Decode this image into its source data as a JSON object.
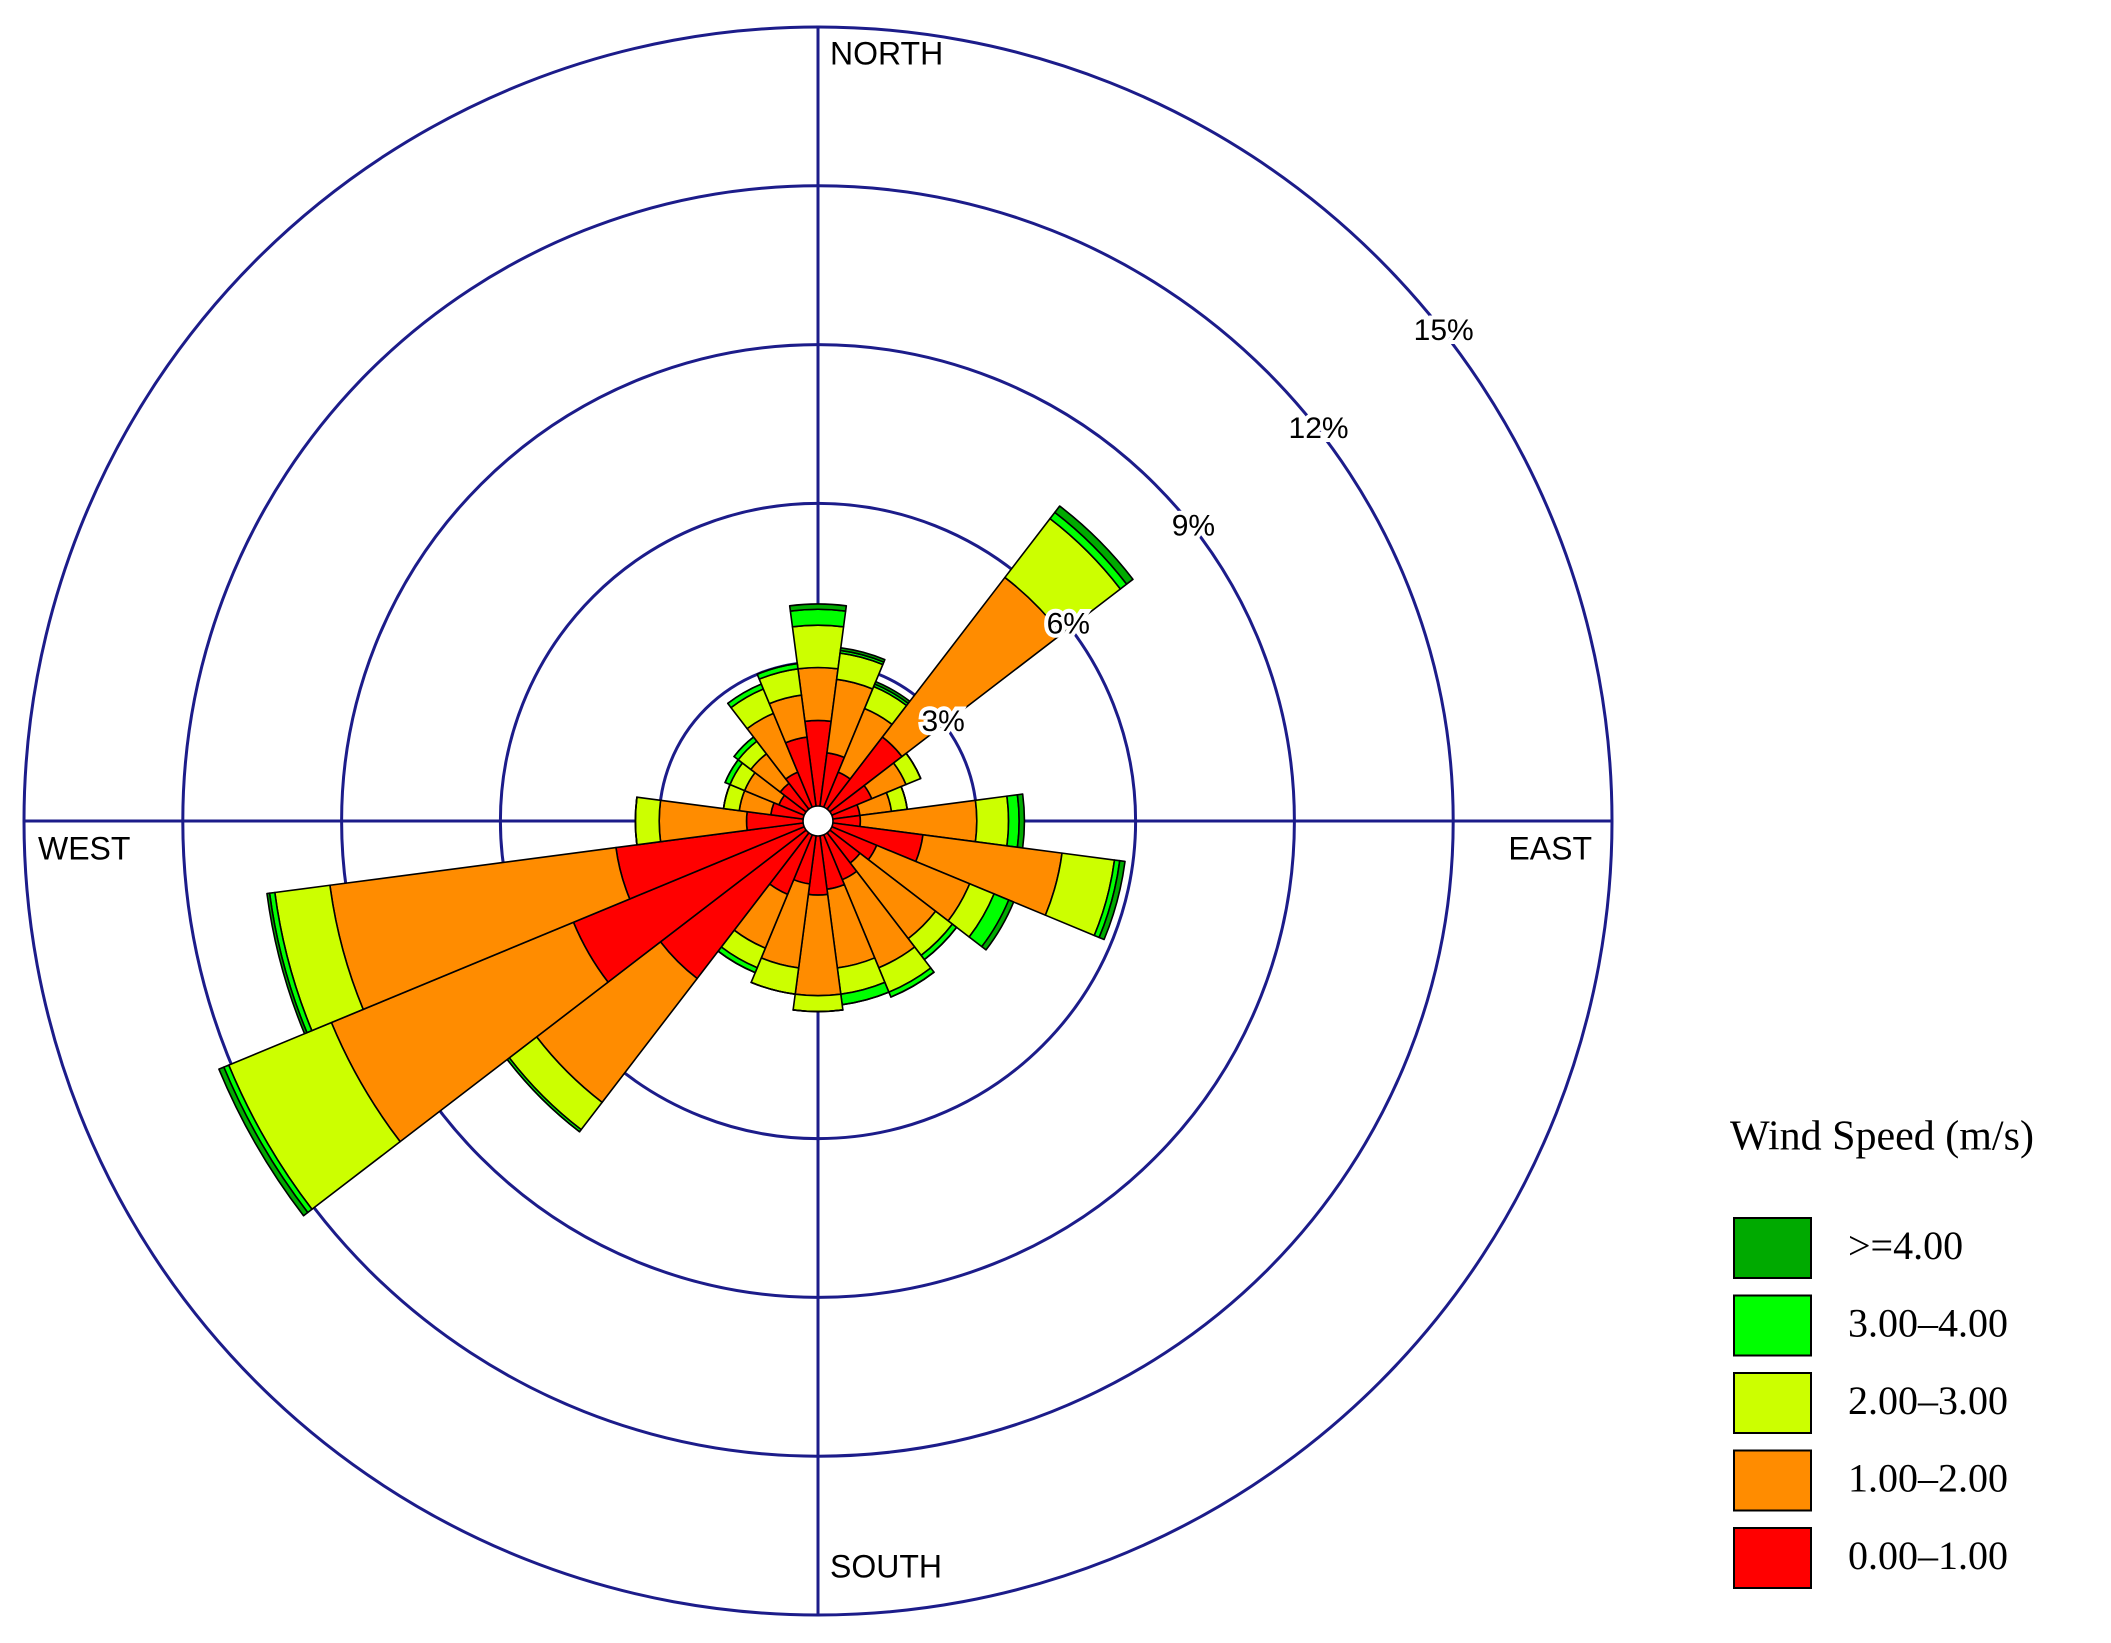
{
  "chart_data": {
    "type": "windrose",
    "legend_title": "Wind Speed (m/s)",
    "compass_labels": [
      "NORTH",
      "EAST",
      "SOUTH",
      "WEST"
    ],
    "x": [
      0,
      15,
      30,
      45,
      60,
      75,
      90,
      105,
      120,
      135,
      150,
      165,
      180,
      195,
      210,
      225,
      240,
      255,
      270,
      285,
      300,
      315,
      330,
      345
    ],
    "rlim": [
      0,
      15
    ],
    "rticks": [
      {
        "value": 3,
        "label": "3%"
      },
      {
        "value": 6,
        "label": "6%"
      },
      {
        "value": 9,
        "label": "9%"
      },
      {
        "value": 12,
        "label": "12%"
      },
      {
        "value": 15,
        "label": "15%"
      }
    ],
    "series": [
      {
        "name": "0.00–1.00",
        "color": "#ff0000",
        "values": [
          1.9,
          1.3,
          1.0,
          2.0,
          1.1,
          0.8,
          0.8,
          2.0,
          1.2,
          1.0,
          1.2,
          1.3,
          1.4,
          1.2,
          1.5,
          3.75,
          5.0,
          3.85,
          1.35,
          0.9,
          0.8,
          0.9,
          1.0,
          1.6
        ]
      },
      {
        "name": "1.00–2.00",
        "color": "#ff8c00",
        "values": [
          1.0,
          1.4,
          1.3,
          3.8,
          0.7,
          0.6,
          2.2,
          2.65,
          1.9,
          1.8,
          1.8,
          1.5,
          1.9,
          1.6,
          1.1,
          2.95,
          4.95,
          5.45,
          1.65,
          0.6,
          0.7,
          0.7,
          1.2,
          0.8
        ]
      },
      {
        "name": "2.00–3.00",
        "color": "#ccff00",
        "values": [
          0.8,
          0.5,
          0.45,
          1.4,
          0.3,
          0.3,
          0.6,
          1.0,
          0.5,
          0.4,
          0.5,
          0.5,
          0.3,
          0.5,
          0.4,
          0.65,
          2.1,
          1.05,
          0.45,
          0.3,
          0.3,
          0.3,
          0.5,
          0.5
        ]
      },
      {
        "name": "3.00–4.00",
        "color": "#00ff00",
        "values": [
          0.3,
          0.05,
          0.05,
          0.15,
          0,
          0,
          0.2,
          0.1,
          0.3,
          0.1,
          0.1,
          0.2,
          0,
          0,
          0.1,
          0.05,
          0.1,
          0.1,
          0,
          0,
          0.1,
          0.1,
          0.1,
          0.1
        ]
      },
      {
        "name": ">=4.00",
        "color": "#00aa00",
        "values": [
          0.1,
          0.05,
          0.05,
          0.15,
          0,
          0,
          0.1,
          0.1,
          0.1,
          0,
          0,
          0,
          0,
          0,
          0,
          0,
          0.1,
          0.05,
          0,
          0,
          0,
          0,
          0,
          0
        ]
      }
    ]
  }
}
